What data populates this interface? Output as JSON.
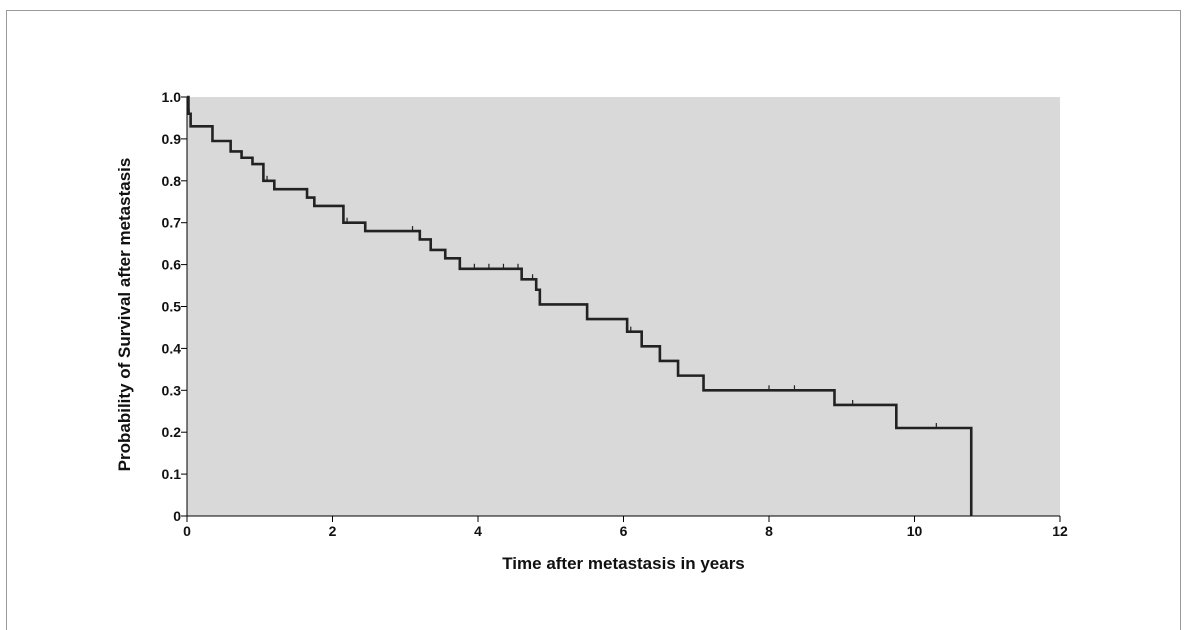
{
  "chart_data": {
    "type": "line",
    "step": true,
    "title": "",
    "xlabel": "Time after metastasis in years",
    "ylabel": "Probability of Survival after metastasis",
    "xlim": [
      0,
      12
    ],
    "ylim": [
      0,
      1.0
    ],
    "xticks": [
      "0",
      "2",
      "4",
      "6",
      "8",
      "10",
      "12"
    ],
    "yticks": [
      "0",
      "0.1",
      "0.2",
      "0.3",
      "0.4",
      "0.5",
      "0.6",
      "0.7",
      "0.8",
      "0.9",
      "1.0"
    ],
    "grid": false,
    "plot_background": "#d9d9d9",
    "line_color": "#222222",
    "series": [
      {
        "values_x": [
          0,
          0.02,
          0.05,
          0.25,
          0.35,
          0.6,
          0.75,
          0.9,
          1.05,
          1.2,
          1.65,
          1.75,
          2.05,
          2.15,
          2.45,
          2.7,
          3.2,
          3.3,
          3.35,
          3.55,
          3.75,
          4.6,
          4.75,
          4.8,
          4.85,
          5.5,
          6.05,
          6.1,
          6.25,
          6.3,
          6.5,
          6.75,
          7.1,
          8.9,
          9.75,
          10.78
        ],
        "values_y": [
          1.0,
          0.96,
          0.93,
          0.93,
          0.895,
          0.87,
          0.855,
          0.84,
          0.8,
          0.78,
          0.76,
          0.74,
          0.74,
          0.7,
          0.68,
          0.68,
          0.66,
          0.66,
          0.635,
          0.615,
          0.59,
          0.565,
          0.565,
          0.54,
          0.505,
          0.47,
          0.44,
          0.44,
          0.405,
          0.405,
          0.37,
          0.335,
          0.3,
          0.265,
          0.21,
          0.14
        ],
        "end_x": 10.78,
        "end_y": 0
      }
    ],
    "censor_marks_x": [
      0.03,
      0.9,
      1.1,
      2.2,
      3.1,
      3.75,
      3.95,
      4.15,
      4.35,
      4.55,
      4.75,
      6.1,
      6.5,
      8.0,
      8.35,
      9.15,
      10.3
    ]
  }
}
